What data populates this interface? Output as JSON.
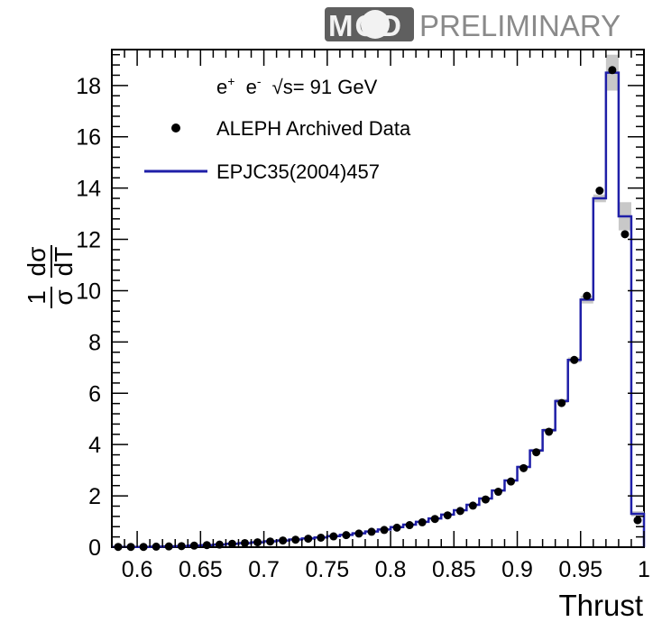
{
  "badge": {
    "mod": "MOD",
    "text": "PRELIMINARY"
  },
  "chart_data": {
    "type": "histogram",
    "xlabel": "Thrust",
    "ylabel": {
      "numerator": "1",
      "sigma": "σ",
      "d_sigma": "dσ",
      "d_T": "dT"
    },
    "xlim": [
      0.58,
      1.0
    ],
    "ylim": [
      0,
      19.4
    ],
    "x_ticks": [
      "0.6",
      "0.65",
      "0.7",
      "0.75",
      "0.8",
      "0.85",
      "0.9",
      "0.95",
      "1"
    ],
    "y_ticks": [
      "0",
      "2",
      "4",
      "6",
      "8",
      "10",
      "12",
      "14",
      "16",
      "18"
    ],
    "x_tick_values": [
      0.6,
      0.65,
      0.7,
      0.75,
      0.8,
      0.85,
      0.9,
      0.95,
      1.0
    ],
    "y_tick_values": [
      0,
      2,
      4,
      6,
      8,
      10,
      12,
      14,
      16,
      18
    ],
    "annotation": {
      "e1": "e",
      "e1_sup": "+",
      "e2": "e",
      "e2_sup": "-",
      "sqrt": "√",
      "rest": "s= 91 GeV"
    },
    "legend": [
      {
        "label": "ALEPH Archived Data",
        "marker": "point",
        "color": "#000000"
      },
      {
        "label": "EPJC35(2004)457",
        "marker": "line",
        "color": "#1f1fa8"
      }
    ],
    "legend_position": "top-left",
    "band_color": "#c8c8c8",
    "bin_edges": [
      0.58,
      0.59,
      0.6,
      0.61,
      0.62,
      0.63,
      0.64,
      0.65,
      0.66,
      0.67,
      0.68,
      0.69,
      0.7,
      0.71,
      0.72,
      0.73,
      0.74,
      0.75,
      0.76,
      0.77,
      0.78,
      0.79,
      0.8,
      0.81,
      0.82,
      0.83,
      0.84,
      0.85,
      0.86,
      0.87,
      0.88,
      0.89,
      0.9,
      0.91,
      0.92,
      0.93,
      0.94,
      0.95,
      0.96,
      0.97,
      0.98,
      0.99,
      1.0
    ],
    "series": [
      {
        "name": "ALEPH Archived Data",
        "x": [
          0.585,
          0.595,
          0.605,
          0.615,
          0.625,
          0.635,
          0.645,
          0.655,
          0.665,
          0.675,
          0.685,
          0.695,
          0.705,
          0.715,
          0.725,
          0.735,
          0.745,
          0.755,
          0.765,
          0.775,
          0.785,
          0.795,
          0.805,
          0.815,
          0.825,
          0.835,
          0.845,
          0.855,
          0.865,
          0.875,
          0.885,
          0.895,
          0.905,
          0.915,
          0.925,
          0.935,
          0.945,
          0.955,
          0.965,
          0.975,
          0.985,
          0.995
        ],
        "y": [
          0.01,
          0.01,
          0.01,
          0.02,
          0.03,
          0.04,
          0.06,
          0.08,
          0.1,
          0.13,
          0.16,
          0.19,
          0.22,
          0.26,
          0.29,
          0.33,
          0.37,
          0.42,
          0.47,
          0.53,
          0.6,
          0.67,
          0.76,
          0.86,
          0.97,
          1.1,
          1.24,
          1.41,
          1.62,
          1.86,
          2.16,
          2.56,
          3.08,
          3.7,
          4.5,
          5.62,
          7.3,
          9.8,
          13.9,
          18.6,
          12.2,
          1.05
        ]
      },
      {
        "name": "EPJC35(2004)457",
        "y": [
          0.01,
          0.01,
          0.01,
          0.02,
          0.03,
          0.04,
          0.06,
          0.08,
          0.1,
          0.13,
          0.16,
          0.19,
          0.23,
          0.26,
          0.3,
          0.34,
          0.38,
          0.43,
          0.48,
          0.54,
          0.61,
          0.69,
          0.78,
          0.88,
          0.99,
          1.12,
          1.27,
          1.44,
          1.65,
          1.9,
          2.21,
          2.6,
          3.13,
          3.77,
          4.56,
          5.7,
          7.3,
          9.65,
          13.6,
          18.5,
          12.9,
          1.3
        ],
        "y_err": [
          0,
          0,
          0,
          0,
          0,
          0,
          0,
          0,
          0,
          0,
          0,
          0,
          0,
          0,
          0,
          0,
          0,
          0,
          0,
          0,
          0,
          0,
          0,
          0,
          0,
          0,
          0,
          0,
          0,
          0.02,
          0.03,
          0.04,
          0.05,
          0.06,
          0.07,
          0.08,
          0.1,
          0.15,
          0.15,
          0.7,
          0.55,
          0.1
        ]
      }
    ]
  }
}
